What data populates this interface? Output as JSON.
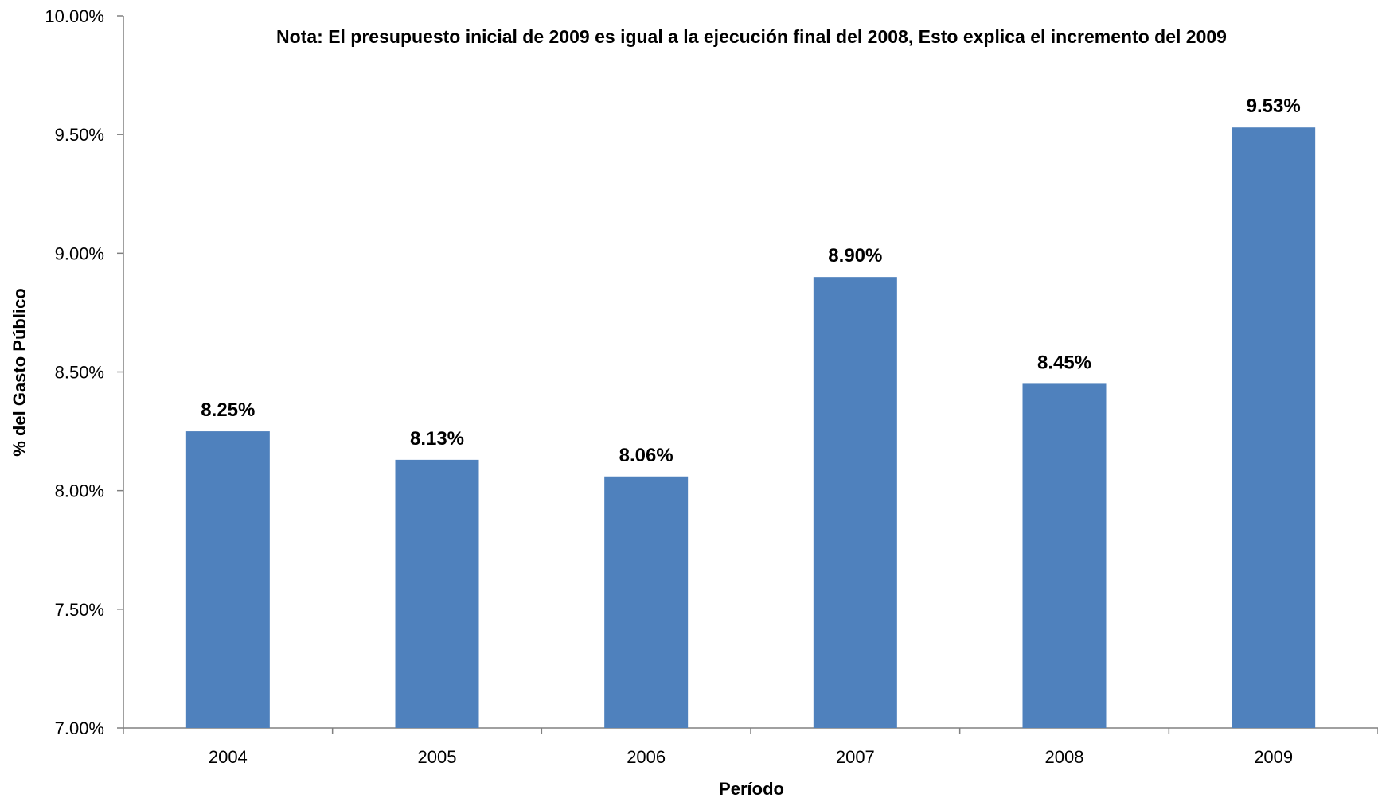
{
  "chart_data": {
    "type": "bar",
    "title": "Nota: El presupuesto inicial de 2009 es igual a la ejecución final del 2008, Esto explica el incremento del 2009",
    "xlabel": "Período",
    "ylabel": "% del Gasto Público",
    "categories": [
      "2004",
      "2005",
      "2006",
      "2007",
      "2008",
      "2009"
    ],
    "values": [
      8.25,
      8.13,
      8.06,
      8.9,
      8.45,
      9.53
    ],
    "data_labels": [
      "8.25%",
      "8.13%",
      "8.06%",
      "8.90%",
      "8.45%",
      "9.53%"
    ],
    "ylim": [
      7.0,
      10.0
    ],
    "yticks": [
      7.0,
      7.5,
      8.0,
      8.5,
      9.0,
      9.5,
      10.0
    ],
    "ytick_labels": [
      "7.00%",
      "7.50%",
      "8.00%",
      "8.50%",
      "9.00%",
      "9.50%",
      "10.00%"
    ],
    "grid": false,
    "legend": "none",
    "bar_color": "#4f81bd",
    "axis_color": "#808080"
  }
}
